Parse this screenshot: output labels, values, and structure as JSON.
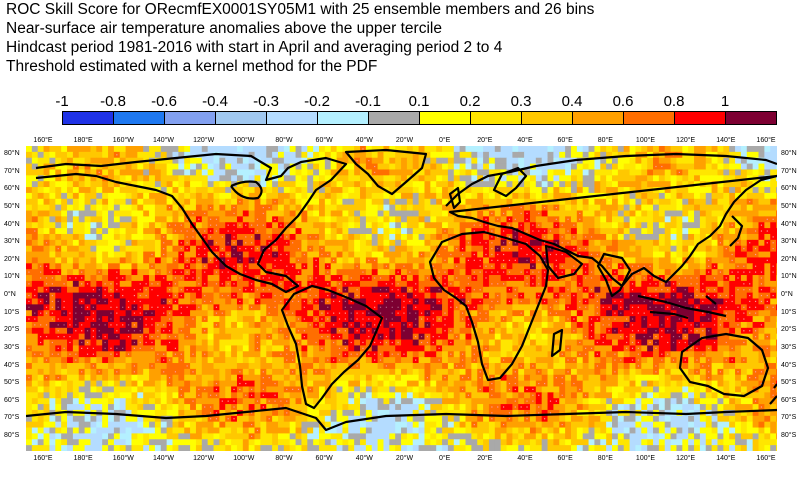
{
  "titles": [
    "ROC Skill Score for ORecmfEX0001SY05M1 with 25 ensemble members and 26 bins",
    "Near-surface air temperature anomalies above the upper tercile",
    "Hindcast period 1981-2016 with start in April and averaging period  2 to  4",
    "Threshold estimated with a kernel method for the PDF"
  ],
  "colorbar": {
    "labels": [
      "-1",
      "-0.8",
      "-0.6",
      "-0.4",
      "-0.3",
      "-0.2",
      "-0.1",
      "0.1",
      "0.2",
      "0.3",
      "0.4",
      "0.6",
      "0.8",
      "1"
    ],
    "colors": [
      "#1f32e6",
      "#1e78f0",
      "#82a0f0",
      "#a0c8f0",
      "#b4dcff",
      "#b4f0ff",
      "#a9a9a9",
      "#ffff00",
      "#ffe600",
      "#ffc800",
      "#ffa000",
      "#ff6e00",
      "#ff0000",
      "#7d0032"
    ]
  },
  "map": {
    "lon_labels": [
      "160°E",
      "180°E",
      "160°W",
      "140°W",
      "120°W",
      "100°W",
      "80°W",
      "60°W",
      "40°W",
      "20°W",
      "0°E",
      "20°E",
      "40°E",
      "60°E",
      "80°E",
      "100°E",
      "120°E",
      "140°E",
      "160°E"
    ],
    "lat_labels": [
      "80°N",
      "70°N",
      "60°N",
      "50°N",
      "40°N",
      "30°N",
      "20°N",
      "10°N",
      "0°N",
      "10°S",
      "20°S",
      "30°S",
      "40°S",
      "50°S",
      "60°S",
      "70°S",
      "80°S"
    ]
  }
}
